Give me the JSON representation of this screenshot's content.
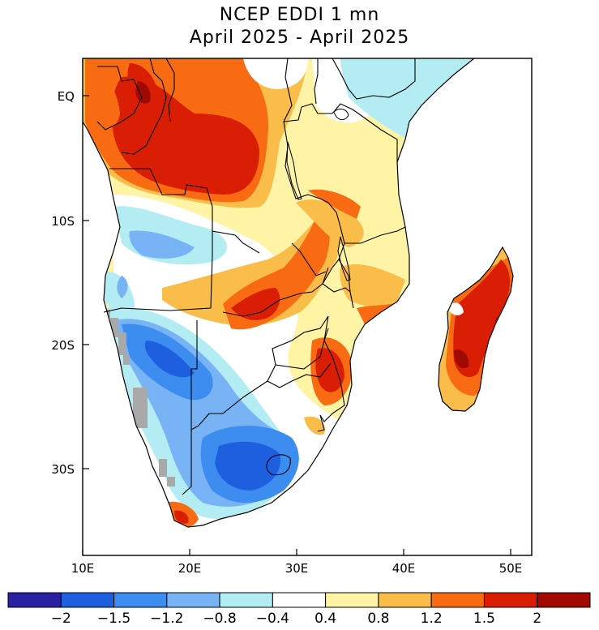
{
  "title": {
    "line1": "NCEP EDDI 1 mn",
    "line2": "April 2025 - April 2025"
  },
  "axes": {
    "lat_labels": [
      "EQ",
      "10S",
      "20S",
      "30S"
    ],
    "lon_labels": [
      "10E",
      "20E",
      "30E",
      "40E",
      "50E"
    ]
  },
  "colorbar": {
    "labels": [
      "-2",
      "-1.5",
      "-1.2",
      "-0.8",
      "-0.4",
      "0.4",
      "0.8",
      "1.2",
      "1.5",
      "2"
    ],
    "colors": [
      "#2b1fa3",
      "#1e5fe0",
      "#3d8cf0",
      "#78b4f5",
      "#b4ecf4",
      "#ffffff",
      "#fff3a6",
      "#fbbd4a",
      "#f86b12",
      "#da1e05",
      "#a10a02"
    ]
  },
  "map": {
    "region": "Southern Africa",
    "missing_data_color": "#a9a9a9"
  }
}
